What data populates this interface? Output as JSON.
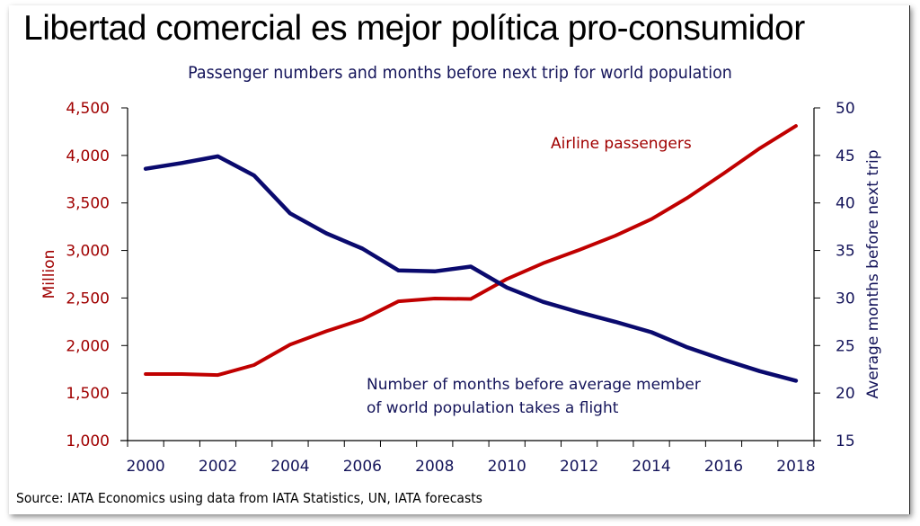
{
  "header": {
    "title": "Libertad comercial es mejor política pro-consumidor"
  },
  "source": "Source: IATA Economics using data from IATA Statistics, UN, IATA forecasts",
  "colors": {
    "passengers": "#c00000",
    "months": "#0a0a6e",
    "left_axis_text": "#a00000",
    "right_axis_text": "#14145a"
  },
  "chart_data": {
    "type": "line",
    "title": "Passenger numbers and months before next trip for world population",
    "xlabel": "",
    "ylabel": "Million",
    "ylabel_right": "Average months before next trip",
    "x": [
      2000,
      2001,
      2002,
      2003,
      2004,
      2005,
      2006,
      2007,
      2008,
      2009,
      2010,
      2011,
      2012,
      2013,
      2014,
      2015,
      2016,
      2017,
      2018
    ],
    "x_tick_labels": [
      "2000",
      "2002",
      "2004",
      "2006",
      "2008",
      "2010",
      "2012",
      "2014",
      "2016",
      "2018"
    ],
    "ylim": [
      1000,
      4500
    ],
    "y_ticks": [
      "1,000",
      "1,500",
      "2,000",
      "2,500",
      "3,000",
      "3,500",
      "4,000",
      "4,500"
    ],
    "ylim_right": [
      15,
      50
    ],
    "y_ticks_right": [
      "15",
      "20",
      "25",
      "30",
      "35",
      "40",
      "45",
      "50"
    ],
    "grid": false,
    "series": [
      {
        "name": "Airline passengers",
        "axis": "left",
        "values": [
          1700,
          1700,
          1690,
          1795,
          2010,
          2150,
          2275,
          2465,
          2495,
          2490,
          2700,
          2865,
          3005,
          3155,
          3330,
          3555,
          3810,
          4075,
          4310
        ]
      },
      {
        "name": "Number of months before average member of world population takes a flight",
        "axis": "right",
        "values": [
          43.6,
          44.2,
          44.9,
          42.9,
          38.9,
          36.8,
          35.2,
          32.9,
          32.8,
          33.3,
          31.1,
          29.6,
          28.5,
          27.5,
          26.4,
          24.8,
          23.5,
          22.3,
          21.3
        ]
      }
    ],
    "annotations": [
      {
        "text": "Airline passengers",
        "series": 0
      },
      {
        "text_lines": [
          "Number of months before average member",
          "of world population takes a flight"
        ],
        "series": 1
      }
    ]
  }
}
